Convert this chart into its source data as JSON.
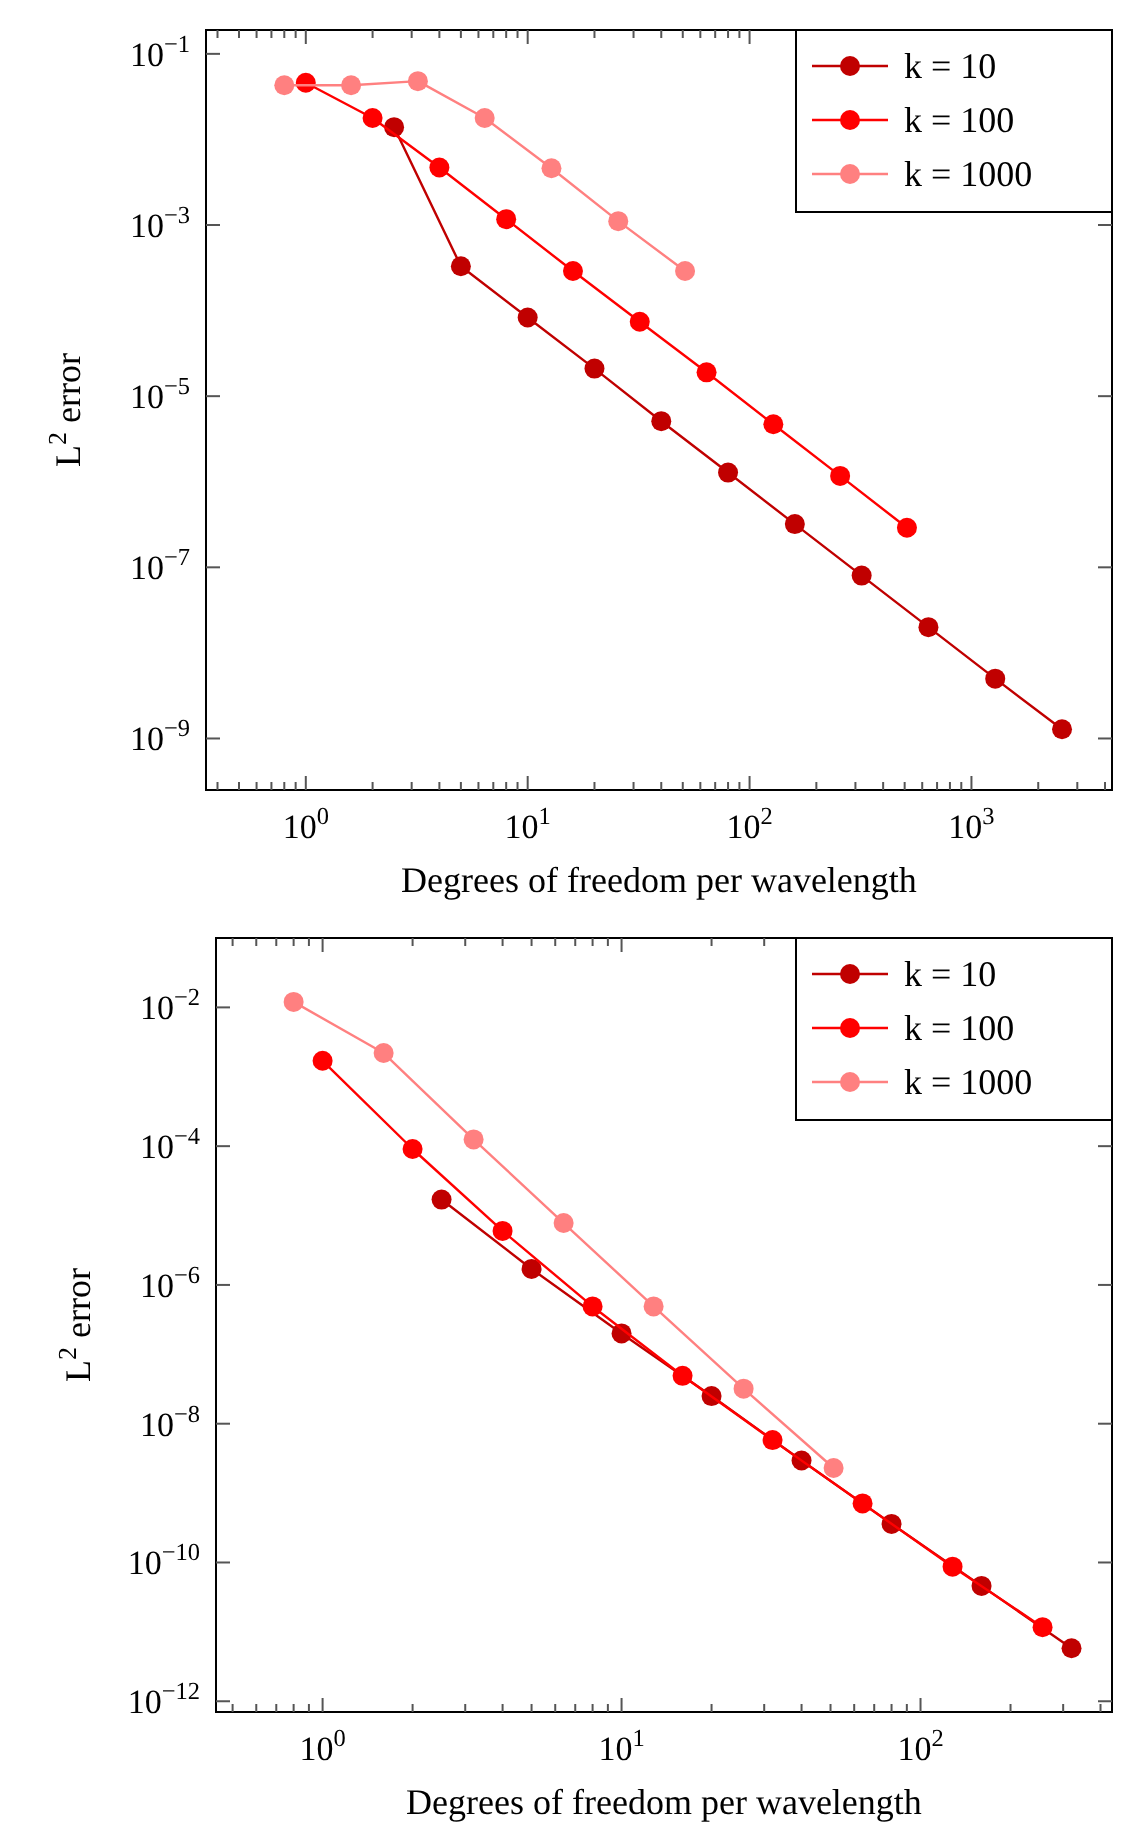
{
  "chart_data": [
    {
      "type": "line",
      "xlabel": "Degrees of freedom per wavelength",
      "ylabel": "L$^{2}$ error",
      "log": "xy",
      "grid": false,
      "legend": "top right",
      "marker": "circle",
      "line_style": "solid",
      "xlim": [
        0.355,
        4300
      ],
      "ylim": [
        2.5e-10,
        0.19
      ],
      "xticks": [
        {
          "value": 0.4,
          "label": null
        },
        {
          "value": 0.5,
          "label": null
        },
        {
          "value": 0.6,
          "label": null
        },
        {
          "value": 0.7,
          "label": null
        },
        {
          "value": 0.8,
          "label": null
        },
        {
          "value": 0.9,
          "label": null
        },
        {
          "value": 1,
          "label": "10$^{0}$"
        },
        {
          "value": 2,
          "label": null
        },
        {
          "value": 3,
          "label": null
        },
        {
          "value": 4,
          "label": null
        },
        {
          "value": 5,
          "label": null
        },
        {
          "value": 6,
          "label": null
        },
        {
          "value": 7,
          "label": null
        },
        {
          "value": 8,
          "label": null
        },
        {
          "value": 9,
          "label": null
        },
        {
          "value": 10,
          "label": "10$^{1}$"
        },
        {
          "value": 20,
          "label": null
        },
        {
          "value": 30,
          "label": null
        },
        {
          "value": 40,
          "label": null
        },
        {
          "value": 50,
          "label": null
        },
        {
          "value": 60,
          "label": null
        },
        {
          "value": 70,
          "label": null
        },
        {
          "value": 80,
          "label": null
        },
        {
          "value": 90,
          "label": null
        },
        {
          "value": 100,
          "label": "10$^{2}$"
        },
        {
          "value": 200,
          "label": null
        },
        {
          "value": 300,
          "label": null
        },
        {
          "value": 400,
          "label": null
        },
        {
          "value": 500,
          "label": null
        },
        {
          "value": 600,
          "label": null
        },
        {
          "value": 700,
          "label": null
        },
        {
          "value": 800,
          "label": null
        },
        {
          "value": 900,
          "label": null
        },
        {
          "value": 1000,
          "label": "10$^{3}$"
        },
        {
          "value": 2000,
          "label": null
        },
        {
          "value": 3000,
          "label": null
        },
        {
          "value": 4000,
          "label": null
        }
      ],
      "yticks": [
        {
          "value": 1e-09,
          "label": "10$^{−9}$"
        },
        {
          "value": 1e-07,
          "label": "10$^{−7}$"
        },
        {
          "value": 1e-05,
          "label": "10$^{−5}$"
        },
        {
          "value": 0.001,
          "label": "10$^{−3}$"
        },
        {
          "value": 0.1,
          "label": "10$^{−1}$"
        }
      ],
      "series": [
        {
          "name": "k = 10",
          "color": "#c00000",
          "x": [
            2.5,
            5,
            10,
            20,
            40,
            80,
            160,
            320,
            640,
            1280,
            2560
          ],
          "values": [
            0.0139,
            0.00033,
            8.3e-05,
            2.1e-05,
            5.1e-06,
            1.28e-06,
            3.2e-07,
            8e-08,
            2e-08,
            5e-09,
            1.28e-09
          ]
        },
        {
          "name": "k = 100",
          "color": "#ff0000",
          "x": [
            1,
            2,
            4,
            8,
            16,
            32,
            64,
            128,
            256,
            512
          ],
          "values": [
            0.046,
            0.0178,
            0.0047,
            0.00117,
            0.00029,
            7.4e-05,
            1.9e-05,
            4.7e-06,
            1.17e-06,
            2.9e-07
          ]
        },
        {
          "name": "k = 1000",
          "color": "#ff8080",
          "x": [
            0.8,
            1.6,
            3.2,
            6.4,
            12.8,
            25.6,
            51.2
          ],
          "values": [
            0.043,
            0.043,
            0.048,
            0.0178,
            0.0046,
            0.00111,
            0.00029
          ]
        }
      ]
    },
    {
      "type": "line",
      "xlabel": "Degrees of freedom per wavelength",
      "ylabel": "L$^{2}$ error",
      "log": "xy",
      "grid": false,
      "legend": "top right",
      "marker": "circle",
      "line_style": "solid",
      "xlim": [
        0.44,
        437
      ],
      "ylim": [
        7e-13,
        0.1
      ],
      "xticks": [
        {
          "value": 0.5,
          "label": null
        },
        {
          "value": 0.6,
          "label": null
        },
        {
          "value": 0.7,
          "label": null
        },
        {
          "value": 0.8,
          "label": null
        },
        {
          "value": 0.9,
          "label": null
        },
        {
          "value": 1,
          "label": "10$^{0}$"
        },
        {
          "value": 2,
          "label": null
        },
        {
          "value": 3,
          "label": null
        },
        {
          "value": 4,
          "label": null
        },
        {
          "value": 5,
          "label": null
        },
        {
          "value": 6,
          "label": null
        },
        {
          "value": 7,
          "label": null
        },
        {
          "value": 8,
          "label": null
        },
        {
          "value": 9,
          "label": null
        },
        {
          "value": 10,
          "label": "10$^{1}$"
        },
        {
          "value": 20,
          "label": null
        },
        {
          "value": 30,
          "label": null
        },
        {
          "value": 40,
          "label": null
        },
        {
          "value": 50,
          "label": null
        },
        {
          "value": 60,
          "label": null
        },
        {
          "value": 70,
          "label": null
        },
        {
          "value": 80,
          "label": null
        },
        {
          "value": 90,
          "label": null
        },
        {
          "value": 100,
          "label": "10$^{2}$"
        },
        {
          "value": 200,
          "label": null
        },
        {
          "value": 300,
          "label": null
        },
        {
          "value": 400,
          "label": null
        }
      ],
      "yticks": [
        {
          "value": 1e-12,
          "label": "10$^{−12}$"
        },
        {
          "value": 1e-10,
          "label": "10$^{−10}$"
        },
        {
          "value": 1e-08,
          "label": "10$^{−8}$"
        },
        {
          "value": 1e-06,
          "label": "10$^{−6}$"
        },
        {
          "value": 0.0001,
          "label": "10$^{−4}$"
        },
        {
          "value": 0.01,
          "label": "10$^{−2}$"
        }
      ],
      "series": [
        {
          "name": "k = 10",
          "color": "#c00000",
          "x": [
            2.5,
            5,
            10,
            20,
            40,
            80,
            160,
            320
          ],
          "values": [
            1.7e-05,
            1.7e-06,
            2e-07,
            2.5e-08,
            2.95e-09,
            3.6e-10,
            4.6e-11,
            5.8e-12
          ]
        },
        {
          "name": "k = 100",
          "color": "#ff0000",
          "x": [
            1,
            2,
            4,
            8,
            16,
            32,
            64,
            128,
            256
          ],
          "values": [
            0.0017,
            9.1e-05,
            6e-06,
            4.9e-07,
            4.9e-08,
            5.8e-09,
            7.1e-10,
            8.7e-11,
            1.17e-11
          ]
        },
        {
          "name": "k = 1000",
          "color": "#ff8080",
          "x": [
            0.8,
            1.6,
            3.2,
            6.4,
            12.8,
            25.6,
            51.2
          ],
          "values": [
            0.012,
            0.0022,
            0.000125,
            7.8e-06,
            4.9e-07,
            3.2e-08,
            2.3e-09
          ]
        }
      ]
    }
  ]
}
